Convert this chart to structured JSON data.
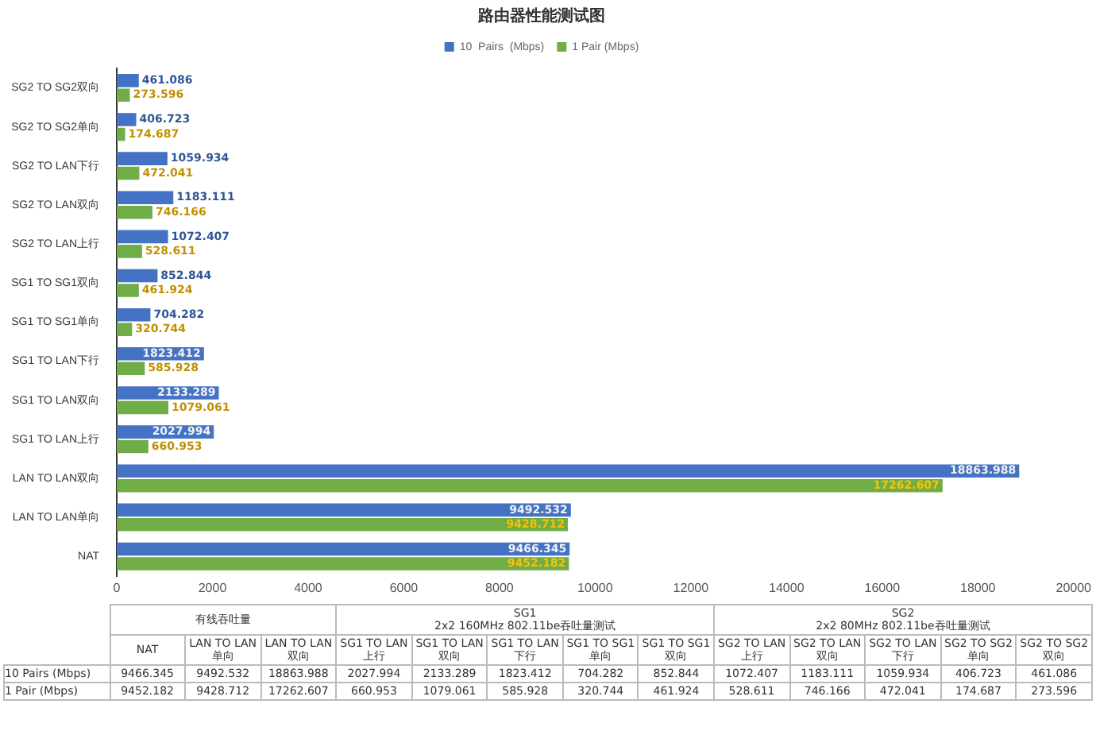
{
  "chart_data": [
    {
      "type": "bar",
      "orientation": "horizontal",
      "title": "路由器性能测试图",
      "categories": [
        "SG2 TO SG2双向",
        "SG2 TO SG2单向",
        "SG2 TO LAN下行",
        "SG2 TO LAN双向",
        "SG2 TO LAN上行",
        "SG1 TO SG1双向",
        "SG1 TO SG1单向",
        "SG1 TO LAN下行",
        "SG1 TO LAN双向",
        "SG1 TO LAN上行",
        "LAN TO LAN双向",
        "LAN TO LAN单向",
        "NAT"
      ],
      "series": [
        {
          "name": "10  Pairs  (Mbps)",
          "color": "#4472c4",
          "values": [
            461.086,
            406.723,
            1059.934,
            1183.111,
            1072.407,
            852.844,
            704.282,
            1823.412,
            2133.289,
            2027.994,
            18863.988,
            9492.532,
            9466.345
          ]
        },
        {
          "name": "1 Pair (Mbps)",
          "color": "#70ad47",
          "values": [
            273.596,
            174.687,
            472.041,
            746.166,
            528.611,
            461.924,
            320.744,
            585.928,
            1079.061,
            660.953,
            17262.607,
            9428.712,
            9452.182
          ]
        }
      ],
      "xlim": [
        0,
        20000
      ],
      "xticks": [
        0,
        2000,
        4000,
        6000,
        8000,
        10000,
        12000,
        14000,
        16000,
        18000,
        20000
      ],
      "data_labels": true,
      "legend": "top"
    },
    {
      "type": "other",
      "categories": [
        "NAT",
        "LAN TO LAN单向",
        "LAN TO LAN双向",
        "SG1 TO LAN上行",
        "SG1 TO LAN双向",
        "SG1 TO LAN下行",
        "SG1 TO SG1单向",
        "SG1 TO SG1双向",
        "SG2 TO LAN上行",
        "SG2 TO LAN双向",
        "SG2 TO LAN下行",
        "SG2 TO SG2单向",
        "SG2 TO SG2双向"
      ],
      "series": [
        {
          "name": "10  Pairs  (Mbps)",
          "values": [
            9466.345,
            9492.532,
            18863.988,
            2027.994,
            2133.289,
            1823.412,
            704.282,
            852.844,
            1072.407,
            1183.111,
            1059.934,
            406.723,
            461.086
          ]
        },
        {
          "name": "1 Pair (Mbps)",
          "values": [
            9452.182,
            9428.712,
            17262.607,
            660.953,
            1079.061,
            585.928,
            320.744,
            461.924,
            528.611,
            746.166,
            472.041,
            174.687,
            273.596
          ]
        }
      ],
      "data_labels": true,
      "annotations": [
        "有线吞吐量",
        "SG1\n2x2 160MHz 802.11be吞吐量测试",
        "SG2\n2x2 80MHz 802.11be吞吐量测试"
      ]
    }
  ]
}
